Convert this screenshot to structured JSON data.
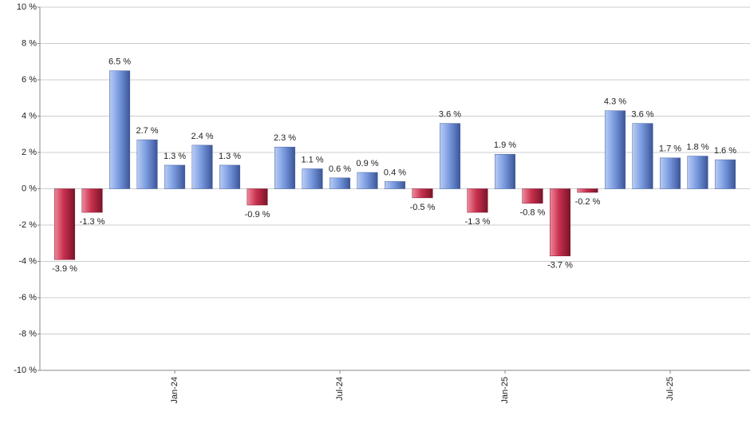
{
  "chart_data": {
    "type": "bar",
    "categories": [
      null,
      null,
      null,
      null,
      "Jan-24",
      null,
      null,
      null,
      null,
      null,
      "Jul-24",
      null,
      null,
      null,
      null,
      null,
      "Jan-25",
      null,
      null,
      null,
      null,
      null,
      "Jul-25",
      null,
      null
    ],
    "values": [
      -3.9,
      -1.3,
      6.5,
      2.7,
      1.3,
      2.4,
      1.3,
      -0.9,
      2.3,
      1.1,
      0.6,
      0.9,
      0.4,
      -0.5,
      3.6,
      -1.3,
      1.9,
      -0.8,
      -3.7,
      -0.2,
      4.3,
      3.6,
      1.7,
      1.8,
      1.6
    ],
    "value_labels": [
      "-3.9 %",
      "-1.3 %",
      "6.5 %",
      "2.7 %",
      "1.3 %",
      "2.4 %",
      "1.3 %",
      "-0.9 %",
      "2.3 %",
      "1.1 %",
      "0.6 %",
      "0.9 %",
      "0.4 %",
      "-0.5 %",
      "3.6 %",
      "-1.3 %",
      "1.9 %",
      "-0.8 %",
      "-3.7 %",
      "-0.2 %",
      "4.3 %",
      "3.6 %",
      "1.7 %",
      "1.8 %",
      "1.6 %"
    ],
    "positive_color": "#7a9be0",
    "negative_color": "#c8304e",
    "ylim": [
      -10,
      10
    ],
    "yticks": [
      {
        "value": -10,
        "label": "-10 %"
      },
      {
        "value": -8,
        "label": "-8 %"
      },
      {
        "value": -6,
        "label": "-6 %"
      },
      {
        "value": -4,
        "label": "-4 %"
      },
      {
        "value": -2,
        "label": "-2 %"
      },
      {
        "value": 0,
        "label": "0 %"
      },
      {
        "value": 2,
        "label": "2 %"
      },
      {
        "value": 4,
        "label": "4 %"
      },
      {
        "value": 6,
        "label": "6 %"
      },
      {
        "value": 8,
        "label": "8 %"
      },
      {
        "value": 10,
        "label": "10 %"
      }
    ],
    "grid": true
  }
}
